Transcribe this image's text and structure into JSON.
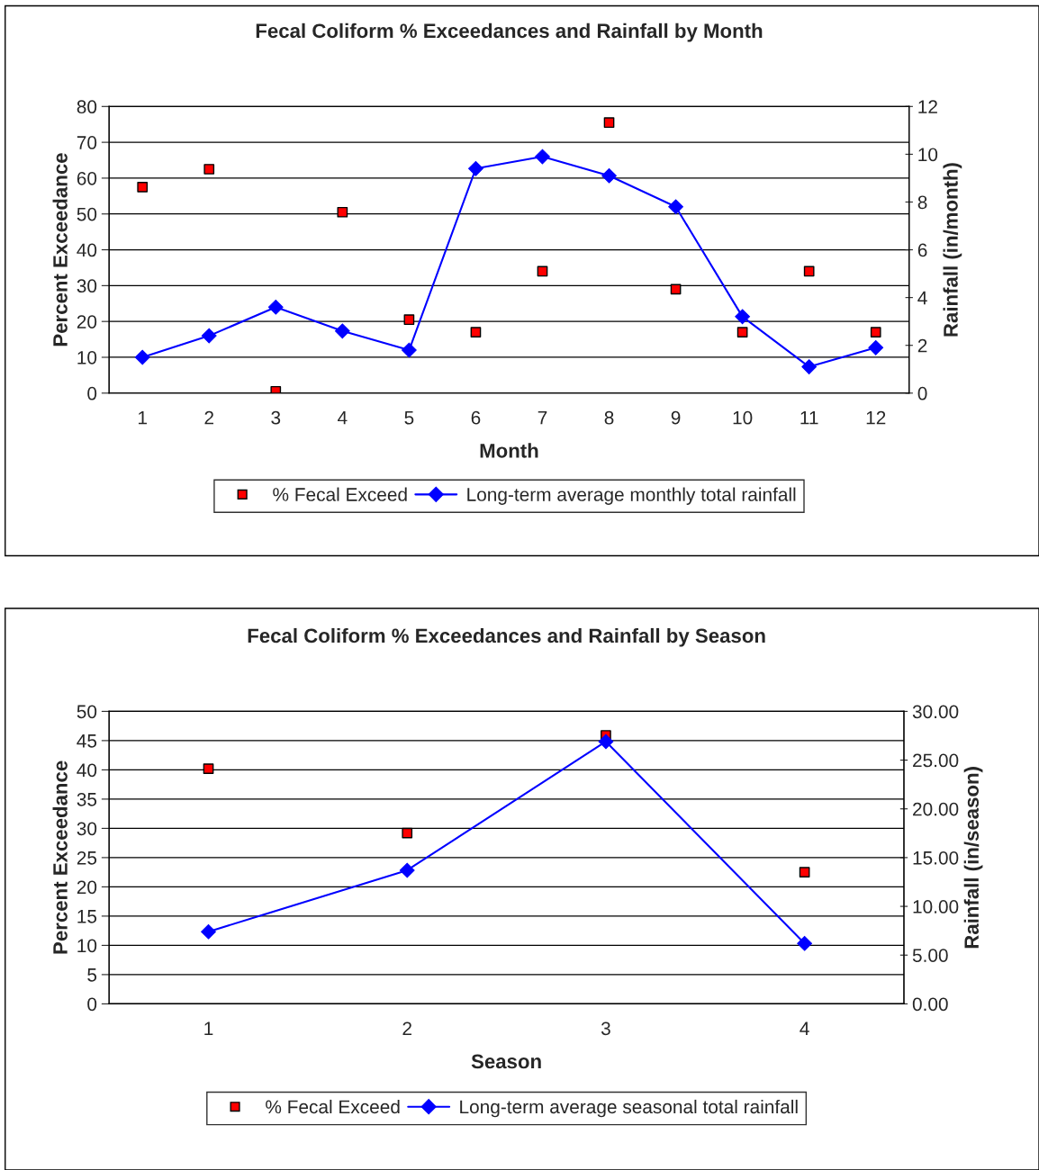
{
  "chart_data": [
    {
      "type": "scatter",
      "title": "Fecal Coliform % Exceedances and Rainfall by Month",
      "xlabel": "Month",
      "ylabel": "Percent Exceedance",
      "y2label": "Rainfall (in/month)",
      "categories": [
        "1",
        "2",
        "3",
        "4",
        "5",
        "6",
        "7",
        "8",
        "9",
        "10",
        "11",
        "12"
      ],
      "series": [
        {
          "name": "% Fecal Exceed",
          "marker": "square",
          "color": "#ff0000",
          "values": [
            57.5,
            62.5,
            0.5,
            50.5,
            20.5,
            17,
            34,
            75.5,
            29,
            17,
            34,
            17
          ]
        },
        {
          "name": "Long-term average monthly total rainfall",
          "type": "line",
          "marker": "diamond",
          "axis": "y2",
          "color": "#0000ff",
          "values": [
            1.5,
            2.4,
            3.6,
            2.6,
            1.8,
            9.4,
            9.9,
            9.1,
            7.8,
            3.2,
            1.1,
            1.9
          ]
        }
      ],
      "ylim": [
        0,
        80
      ],
      "yticks": [
        0,
        10,
        20,
        30,
        40,
        50,
        60,
        70,
        80
      ],
      "y2lim": [
        0,
        12
      ],
      "y2ticks": [
        0,
        2,
        4,
        6,
        8,
        10,
        12
      ],
      "grid": "y",
      "legend": "bottom"
    },
    {
      "type": "scatter",
      "title": "Fecal Coliform % Exceedances and Rainfall by Season",
      "xlabel": "Season",
      "ylabel": "Percent Exceedance",
      "y2label": "Rainfall (in/season)",
      "categories": [
        "1",
        "2",
        "3",
        "4"
      ],
      "series": [
        {
          "name": "% Fecal Exceed",
          "marker": "square",
          "color": "#ff0000",
          "values": [
            40.2,
            29.2,
            45.9,
            22.5
          ]
        },
        {
          "name": "Long-term average seasonal total rainfall",
          "type": "line",
          "marker": "diamond",
          "axis": "y2",
          "color": "#0000ff",
          "values": [
            7.4,
            13.7,
            26.9,
            6.2
          ]
        }
      ],
      "ylim": [
        0,
        50
      ],
      "yticks": [
        0,
        5,
        10,
        15,
        20,
        25,
        30,
        35,
        40,
        45,
        50
      ],
      "y2lim": [
        0,
        30
      ],
      "y2ticks": [
        {
          "value": 0,
          "label": "0.00"
        },
        {
          "value": 5,
          "label": "5.00"
        },
        {
          "value": 10,
          "label": "10.00"
        },
        {
          "value": 15,
          "label": "15.00"
        },
        {
          "value": 20,
          "label": "20.00"
        },
        {
          "value": 25,
          "label": "25.00"
        },
        {
          "value": 30,
          "label": "30.00"
        }
      ],
      "grid": "y",
      "legend": "bottom"
    }
  ]
}
